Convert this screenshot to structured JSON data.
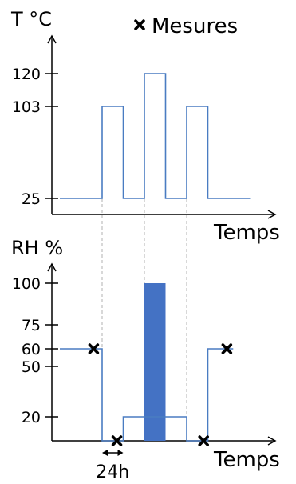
{
  "legend": {
    "marker_label": "Mesures",
    "marker_icon": "cross-icon"
  },
  "colors": {
    "temperature_line": "#4a7cc2",
    "rh_line": "#4a7cc2",
    "rh_bar": "#4472c4",
    "guide_lines": "#b0b0b0",
    "axis": "#000000"
  },
  "chart_data": [
    {
      "type": "line",
      "ylabel": "T °C",
      "xlabel": "Temps",
      "yticks": [
        25,
        103,
        120
      ],
      "ylim": [
        0,
        140
      ],
      "xlim": [
        0,
        13
      ],
      "series": [
        {
          "x": [
            0,
            2,
            2,
            3,
            3,
            4,
            4,
            5,
            5,
            6,
            6,
            7,
            7,
            8,
            8,
            9
          ],
          "y": [
            25,
            25,
            103,
            103,
            25,
            25,
            120,
            120,
            25,
            25,
            103,
            103,
            25,
            25,
            25,
            25
          ]
        }
      ],
      "vertical_guides_x": [
        2,
        4,
        6
      ]
    },
    {
      "type": "line",
      "ylabel": "RH %",
      "xlabel": "Temps",
      "yticks": [
        20,
        50,
        60,
        75,
        100
      ],
      "ylim": [
        0,
        120
      ],
      "xlim": [
        0,
        13
      ],
      "series": [
        {
          "x": [
            0,
            2,
            2,
            3,
            3,
            4,
            4,
            5,
            5,
            6,
            6,
            7,
            7,
            8.2
          ],
          "y": [
            60,
            60,
            0,
            0,
            20,
            20,
            20,
            20,
            20,
            20,
            0,
            0,
            60,
            60
          ]
        }
      ],
      "bar": {
        "x_start": 4,
        "x_end": 5,
        "value": 100
      },
      "markers": [
        {
          "x": 1.6,
          "y": 60
        },
        {
          "x": 2.7,
          "y": 0
        },
        {
          "x": 6.8,
          "y": 0
        },
        {
          "x": 7.9,
          "y": 60
        }
      ],
      "duration_annotation": {
        "label": "24h",
        "x_start": 2,
        "x_end": 3
      },
      "vertical_guides_x": [
        2,
        4,
        6
      ]
    }
  ]
}
